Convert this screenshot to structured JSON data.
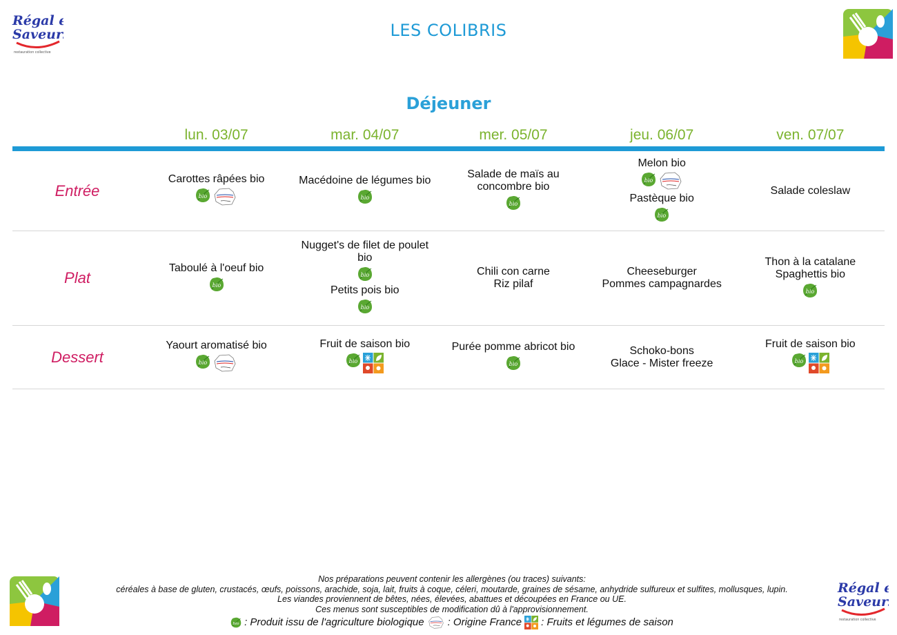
{
  "header": {
    "title": "LES COLIBRIS",
    "logo_text_line1": "Régal et",
    "logo_text_line2": "Saveurs",
    "logo_tagline": "restauration collective"
  },
  "meal": {
    "title": "Déjeuner"
  },
  "days": [
    "lun. 03/07",
    "mar. 04/07",
    "mer. 05/07",
    "jeu. 06/07",
    "ven. 07/07"
  ],
  "rows": [
    {
      "label": "Entrée",
      "cells": [
        {
          "items": [
            {
              "name": "Carottes râpées bio",
              "icons": [
                "bio",
                "origine-france"
              ]
            }
          ]
        },
        {
          "items": [
            {
              "name": "Macédoine de légumes bio",
              "icons": [
                "bio"
              ]
            }
          ]
        },
        {
          "items": [
            {
              "name": "Salade de maïs au concombre bio",
              "icons": [
                "bio"
              ]
            }
          ]
        },
        {
          "items": [
            {
              "name": "Melon bio",
              "icons": [
                "bio",
                "origine-france"
              ]
            },
            {
              "name": "Pastèque bio",
              "icons": [
                "bio"
              ]
            }
          ]
        },
        {
          "items": [
            {
              "name": "Salade coleslaw",
              "icons": []
            }
          ]
        }
      ]
    },
    {
      "label": "Plat",
      "cells": [
        {
          "items": [
            {
              "name": "Taboulé à l'oeuf bio",
              "icons": [
                "bio"
              ]
            }
          ]
        },
        {
          "items": [
            {
              "name": "Nugget's de filet de poulet bio",
              "icons": [
                "bio"
              ]
            },
            {
              "name": "Petits pois bio",
              "icons": [
                "bio"
              ]
            }
          ]
        },
        {
          "items": [
            {
              "name": "Chili con carne",
              "icons": []
            },
            {
              "name": "Riz pilaf",
              "icons": []
            }
          ]
        },
        {
          "items": [
            {
              "name": "Cheeseburger",
              "icons": []
            },
            {
              "name": "Pommes campagnardes",
              "icons": []
            }
          ]
        },
        {
          "items": [
            {
              "name": "Thon à la catalane",
              "icons": []
            },
            {
              "name": "Spaghettis bio",
              "icons": [
                "bio"
              ]
            }
          ]
        }
      ]
    },
    {
      "label": "Dessert",
      "cells": [
        {
          "items": [
            {
              "name": "Yaourt aromatisé bio",
              "icons": [
                "bio",
                "origine-france"
              ]
            }
          ]
        },
        {
          "items": [
            {
              "name": "Fruit de saison bio",
              "icons": [
                "bio",
                "saison"
              ]
            }
          ]
        },
        {
          "items": [
            {
              "name": "Purée pomme abricot bio",
              "icons": [
                "bio"
              ]
            }
          ]
        },
        {
          "items": [
            {
              "name": "Schoko-bons",
              "icons": []
            },
            {
              "name": "Glace - Mister freeze",
              "icons": []
            }
          ]
        },
        {
          "items": [
            {
              "name": "Fruit de saison bio",
              "icons": [
                "bio",
                "saison"
              ]
            }
          ]
        }
      ]
    }
  ],
  "footer": {
    "line1": "Nos préparations peuvent contenir les allergènes (ou traces) suivants:",
    "line2": "céréales à base de gluten, crustacés, œufs, poissons, arachide, soja, lait, fruits à coque, céleri, moutarde, graines de sésame, anhydride sulfureux et sulfites, mollusques, lupin.",
    "line3": "Les viandes proviennent de bêtes, nées, élevées, abattues et découpées en France ou UE.",
    "line4": "Ces menus sont susceptibles de modification dû à l'approvisionnement.",
    "legend_bio": ": Produit issu de l'agriculture biologique",
    "legend_france": ": Origine France",
    "legend_season": ": Fruits et légumes de saison"
  },
  "colors": {
    "title_blue": "#1e9ad6",
    "day_green": "#7bb32e",
    "label_pink": "#cf1d62"
  }
}
